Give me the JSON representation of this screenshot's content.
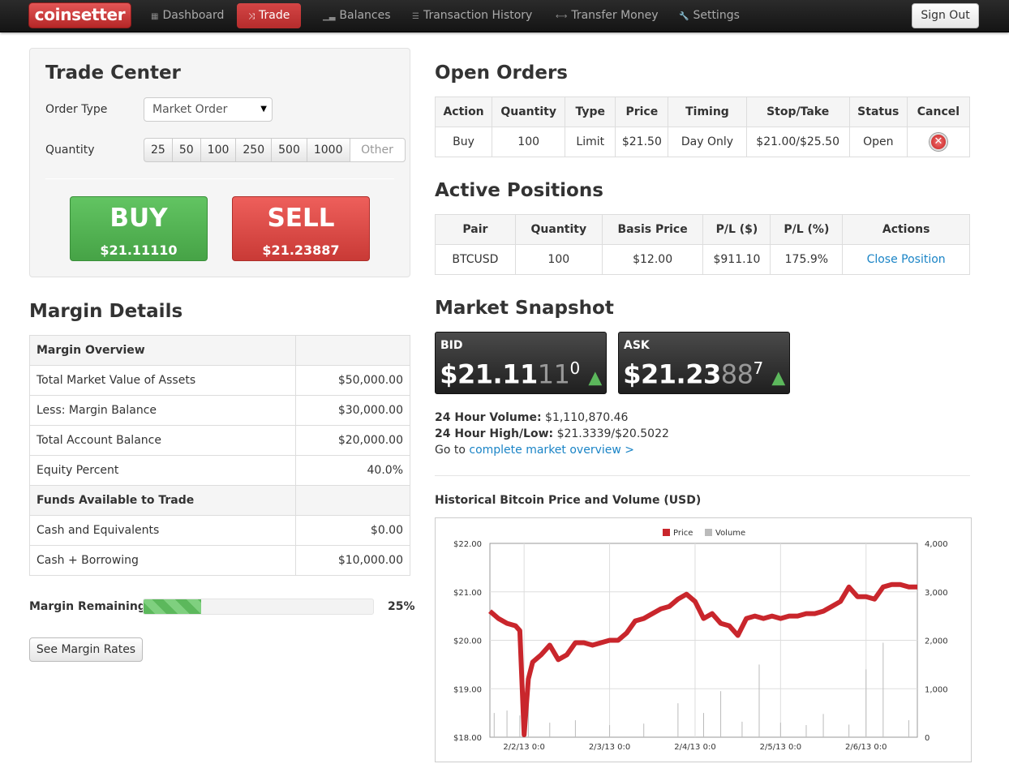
{
  "nav": {
    "brand": "coinsetter",
    "items": [
      {
        "label": "Dashboard",
        "icon": "grid-icon"
      },
      {
        "label": "Trade",
        "icon": "shuffle-icon",
        "active": true
      },
      {
        "label": "Balances",
        "icon": "bar-chart-icon"
      },
      {
        "label": "Transaction History",
        "icon": "list-icon"
      },
      {
        "label": "Transfer Money",
        "icon": "arrows-icon"
      },
      {
        "label": "Settings",
        "icon": "wrench-icon"
      }
    ],
    "signout": "Sign Out"
  },
  "trade": {
    "title": "Trade Center",
    "order_type_label": "Order Type",
    "order_type_value": "Market Order",
    "quantity_label": "Quantity",
    "quantities": [
      "25",
      "50",
      "100",
      "250",
      "500",
      "1000"
    ],
    "other_placeholder": "Other",
    "buy_label": "BUY",
    "buy_price": "$21.11110",
    "sell_label": "SELL",
    "sell_price": "$21.23887"
  },
  "margin": {
    "title": "Margin Details",
    "rows": [
      {
        "label": "Margin Overview",
        "value": "",
        "head": true
      },
      {
        "label": "Total Market Value of Assets",
        "value": "$50,000.00"
      },
      {
        "label": "Less: Margin Balance",
        "value": "$30,000.00"
      },
      {
        "label": "Total Account Balance",
        "value": "$20,000.00"
      },
      {
        "label": "Equity Percent",
        "value": "40.0%"
      },
      {
        "label": "Funds Available to Trade",
        "value": "",
        "head": true
      },
      {
        "label": "Cash and Equivalents",
        "value": "$0.00"
      },
      {
        "label": "Cash + Borrowing",
        "value": "$10,000.00"
      }
    ],
    "remaining_label": "Margin Remaining",
    "remaining_pct": "25%",
    "remaining_fraction": 0.25,
    "rates_button": "See Margin Rates"
  },
  "open_orders": {
    "title": "Open Orders",
    "headers": [
      "Action",
      "Quantity",
      "Type",
      "Price",
      "Timing",
      "Stop/Take",
      "Status",
      "Cancel"
    ],
    "rows": [
      [
        "Buy",
        "100",
        "Limit",
        "$21.50",
        "Day Only",
        "$21.00/$25.50",
        "Open"
      ]
    ]
  },
  "positions": {
    "title": "Active Positions",
    "headers": [
      "Pair",
      "Quantity",
      "Basis Price",
      "P/L ($)",
      "P/L (%)",
      "Actions"
    ],
    "rows": [
      [
        "BTCUSD",
        "100",
        "$12.00",
        "$911.10",
        "175.9%",
        "Close Position"
      ]
    ]
  },
  "snapshot": {
    "title": "Market Snapshot",
    "bid_label": "BID",
    "bid_main": "$21.11",
    "bid_dim": "11",
    "bid_sup": "0",
    "ask_label": "ASK",
    "ask_main": "$21.23",
    "ask_dim": "88",
    "ask_sup": "7",
    "volume_label": "24 Hour Volume:",
    "volume_value": "$1,110,870.46",
    "hilo_label": "24 Hour High/Low:",
    "hilo_value": "$21.3339/$20.5022",
    "goto_text": "Go to",
    "goto_link": "complete market overview >"
  },
  "chart_data": {
    "type": "line",
    "title": "Historical Bitcoin Price and Volume (USD)",
    "legend": [
      "Price",
      "Volume"
    ],
    "legend_position": "top",
    "colors": {
      "Price": "#c9262c",
      "Volume": "#bbbbbb"
    },
    "y_left": {
      "ticks": [
        "$22.00",
        "$21.00",
        "$20.00",
        "$19.00",
        "$18.00"
      ],
      "range": [
        18,
        22
      ]
    },
    "y_right": {
      "ticks": [
        "4,000",
        "3,000",
        "2,000",
        "1,000",
        "0"
      ],
      "range": [
        0,
        4000
      ]
    },
    "x_ticks": [
      "2/2/13 0:0",
      "2/3/13 0:0",
      "2/4/13 0:0",
      "2/5/13 0:0",
      "2/6/13 0:0"
    ],
    "x_range_days": [
      1.6,
      6.6
    ],
    "series": [
      {
        "name": "Price",
        "x": [
          1.6,
          1.7,
          1.8,
          1.9,
          1.95,
          2.0,
          2.05,
          2.1,
          2.2,
          2.3,
          2.4,
          2.5,
          2.6,
          2.7,
          2.8,
          2.9,
          3.0,
          3.1,
          3.2,
          3.3,
          3.4,
          3.5,
          3.6,
          3.7,
          3.8,
          3.9,
          4.0,
          4.1,
          4.2,
          4.3,
          4.4,
          4.5,
          4.6,
          4.7,
          4.8,
          4.9,
          5.0,
          5.1,
          5.2,
          5.3,
          5.4,
          5.5,
          5.6,
          5.7,
          5.8,
          5.9,
          6.0,
          6.1,
          6.2,
          6.3,
          6.4,
          6.5,
          6.6
        ],
        "y": [
          20.6,
          20.45,
          20.35,
          20.3,
          20.2,
          18.05,
          19.2,
          19.55,
          19.7,
          19.9,
          19.6,
          19.7,
          19.95,
          19.95,
          19.9,
          19.95,
          20.0,
          20.0,
          20.15,
          20.4,
          20.45,
          20.55,
          20.65,
          20.7,
          20.85,
          20.95,
          20.8,
          20.45,
          20.55,
          20.35,
          20.3,
          20.1,
          20.45,
          20.5,
          20.45,
          20.5,
          20.45,
          20.5,
          20.5,
          20.55,
          20.55,
          20.6,
          20.7,
          20.8,
          21.1,
          20.9,
          20.9,
          20.85,
          21.1,
          21.15,
          21.15,
          21.1,
          21.1
        ]
      },
      {
        "name": "Volume",
        "x": [
          1.65,
          1.8,
          1.95,
          2.05,
          2.3,
          2.6,
          3.0,
          3.4,
          3.8,
          4.1,
          4.3,
          4.55,
          4.75,
          5.0,
          5.3,
          5.5,
          5.8,
          6.0,
          6.2,
          6.5
        ],
        "y": [
          500,
          550,
          450,
          900,
          300,
          350,
          250,
          280,
          700,
          500,
          950,
          320,
          1500,
          300,
          250,
          480,
          260,
          1400,
          1950,
          350
        ]
      }
    ]
  }
}
